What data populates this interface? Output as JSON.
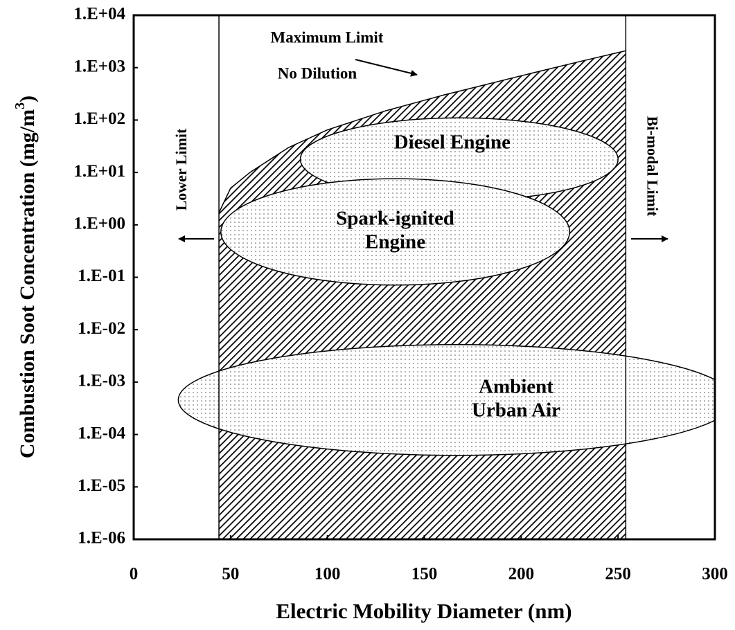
{
  "chart_data": {
    "type": "region",
    "xlabel": "Electric Mobility Diameter (nm)",
    "ylabel": {
      "text": "Combustion Soot Concentration (mg/m",
      "sup": "3",
      "end": ")"
    },
    "xlim": [
      0,
      300
    ],
    "xticks": [
      0,
      50,
      100,
      150,
      200,
      250,
      300
    ],
    "ylim": [
      1e-06,
      10000
    ],
    "yscale": "log",
    "yticks": [
      {
        "value": 1e-06,
        "label": "1.E-06"
      },
      {
        "value": 1e-05,
        "label": "1.E-05"
      },
      {
        "value": 0.0001,
        "label": "1.E-04"
      },
      {
        "value": 0.001,
        "label": "1.E-03"
      },
      {
        "value": 0.01,
        "label": "1.E-02"
      },
      {
        "value": 0.1,
        "label": "1.E-01"
      },
      {
        "value": 1,
        "label": "1.E+00"
      },
      {
        "value": 10,
        "label": "1.E+01"
      },
      {
        "value": 100,
        "label": "1.E+02"
      },
      {
        "value": 1000,
        "label": "1.E+03"
      },
      {
        "value": 10000,
        "label": "1.E+04"
      }
    ],
    "region": {
      "x": [
        44,
        50,
        60,
        80,
        100,
        130,
        160,
        200,
        230,
        254
      ],
      "upper": [
        1.7,
        5,
        10,
        30,
        65,
        150,
        300,
        700,
        1300,
        2100
      ]
    },
    "limits": [
      {
        "name": "Lower Limit",
        "x": 44
      },
      {
        "name": "Bi-modal Limit",
        "x": 254
      }
    ],
    "annotations": [
      "Maximum Limit",
      "No Dilution"
    ],
    "ellipses": [
      {
        "label": [
          "Diesel Engine"
        ],
        "x": [
          86,
          250
        ],
        "y": [
          2.9,
          110
        ]
      },
      {
        "label": [
          "Spark-ignited",
          "Engine"
        ],
        "x": [
          45,
          225
        ],
        "y": [
          0.071,
          7.6
        ]
      },
      {
        "label": [
          "Ambient",
          "Urban Air"
        ],
        "x": [
          23,
          310
        ],
        "y": [
          4e-05,
          0.0052
        ]
      }
    ]
  }
}
